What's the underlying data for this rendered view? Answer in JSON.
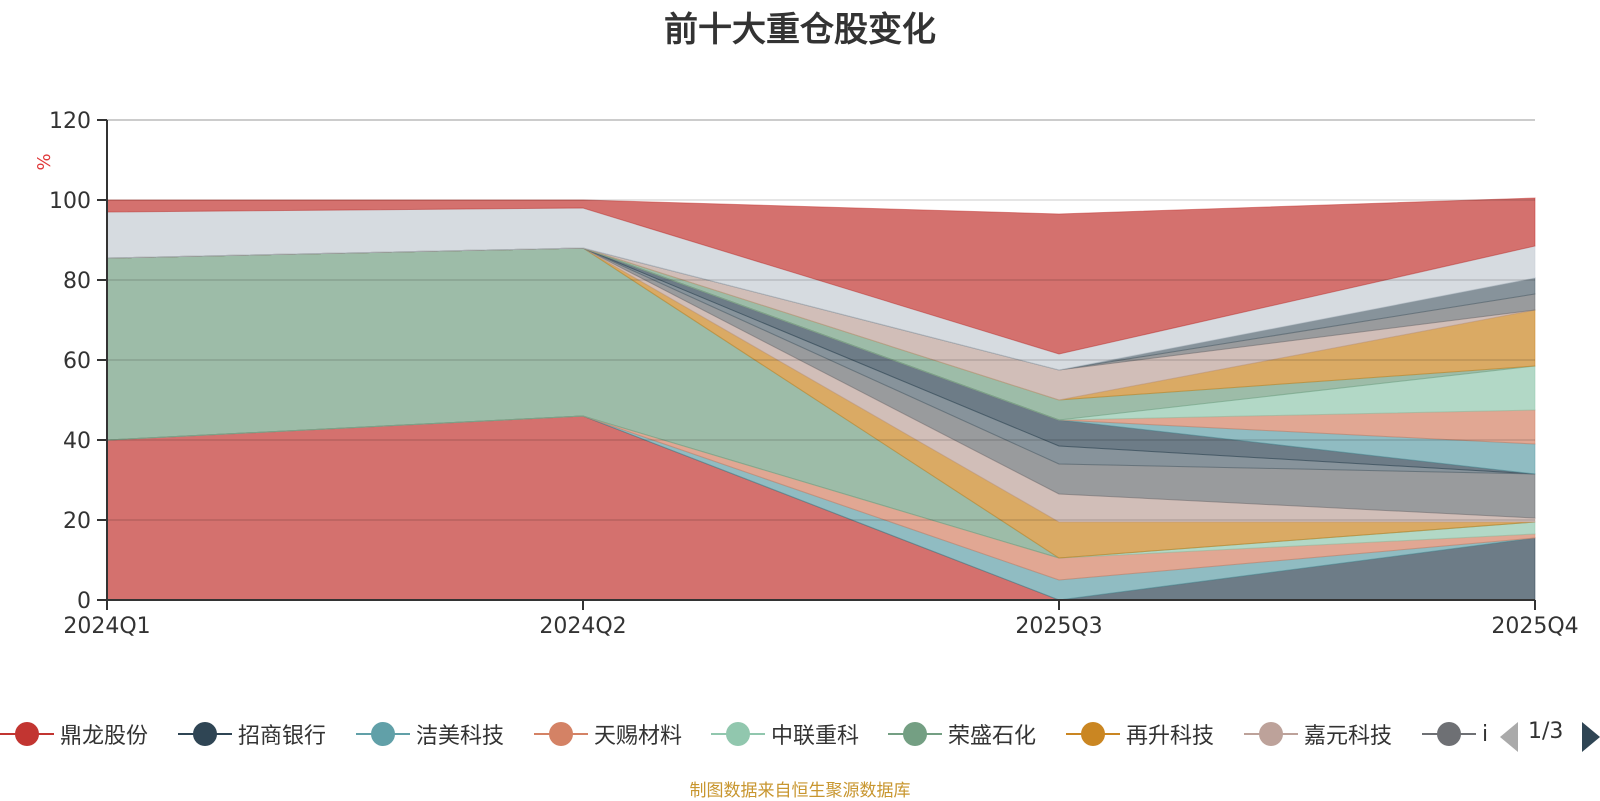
{
  "title": "前十大重仓股变化",
  "source_note": "制图数据来自恒生聚源数据库",
  "legend": {
    "items": [
      {
        "label": "鼎龙股份",
        "color": "#c23531"
      },
      {
        "label": "招商银行",
        "color": "#2f4554"
      },
      {
        "label": "洁美科技",
        "color": "#61a0a8"
      },
      {
        "label": "天赐材料",
        "color": "#d48265"
      },
      {
        "label": "中联重科",
        "color": "#91c7ae"
      },
      {
        "label": "荣盛石化",
        "color": "#749f83"
      },
      {
        "label": "再升科技",
        "color": "#ca8622"
      },
      {
        "label": "嘉元科技",
        "color": "#bda29a"
      },
      {
        "label": "i",
        "color": "#6e7074"
      }
    ],
    "page_text": "1/3"
  },
  "chart_data": {
    "type": "area",
    "stacked": true,
    "x": [
      "2024Q1",
      "2024Q2",
      "2025Q3",
      "2025Q4"
    ],
    "ylabel": "%",
    "ylim": [
      0,
      120
    ],
    "yticks": [
      0,
      20,
      40,
      60,
      80,
      100,
      120
    ],
    "grid": true,
    "series": [
      {
        "name": "鼎龙股份",
        "color": "#c23531",
        "values": [
          40,
          46,
          0,
          0
        ]
      },
      {
        "name": "招商银行",
        "color": "#2f4554",
        "values": [
          0,
          0,
          0,
          15.5
        ]
      },
      {
        "name": "洁美科技",
        "color": "#61a0a8",
        "values": [
          0,
          0,
          5,
          0
        ]
      },
      {
        "name": "天赐材料",
        "color": "#d48265",
        "values": [
          0,
          0,
          5.5,
          1
        ]
      },
      {
        "name": "中联重科",
        "color": "#91c7ae",
        "values": [
          0,
          0,
          0,
          3
        ]
      },
      {
        "name": "荣盛石化",
        "color": "#749f83",
        "values": [
          45.5,
          42,
          0,
          0
        ]
      },
      {
        "name": "再升科技",
        "color": "#ca8622",
        "values": [
          0,
          0,
          9,
          0
        ]
      },
      {
        "name": "嘉元科技",
        "color": "#bda29a",
        "values": [
          0,
          0,
          7,
          1
        ]
      },
      {
        "color": "#6e7074",
        "values": [
          0,
          0,
          7.5,
          11
        ]
      },
      {
        "color": "#546570",
        "values": [
          0,
          0,
          4.5,
          0
        ]
      },
      {
        "color": "#2f4554",
        "values": [
          0,
          0,
          6.5,
          0
        ]
      },
      {
        "color": "#61a0a8",
        "values": [
          0,
          0,
          0,
          7.5
        ]
      },
      {
        "color": "#d48265",
        "values": [
          0,
          0,
          0,
          8.5
        ]
      },
      {
        "color": "#91c7ae",
        "values": [
          0,
          0,
          0,
          11
        ]
      },
      {
        "color": "#749f83",
        "values": [
          0,
          0,
          5,
          0
        ]
      },
      {
        "color": "#ca8622",
        "values": [
          0,
          0,
          0,
          14
        ]
      },
      {
        "color": "#bda29a",
        "values": [
          0,
          0,
          7.5,
          0
        ]
      },
      {
        "color": "#6e7074",
        "values": [
          0,
          0,
          0,
          4
        ]
      },
      {
        "color": "#546570",
        "values": [
          0,
          0,
          0,
          4
        ]
      },
      {
        "color": "#c4ccd3",
        "values": [
          11.5,
          10,
          4,
          8
        ]
      },
      {
        "color": "#c23531",
        "values": [
          3,
          2,
          35,
          12
        ]
      }
    ]
  }
}
